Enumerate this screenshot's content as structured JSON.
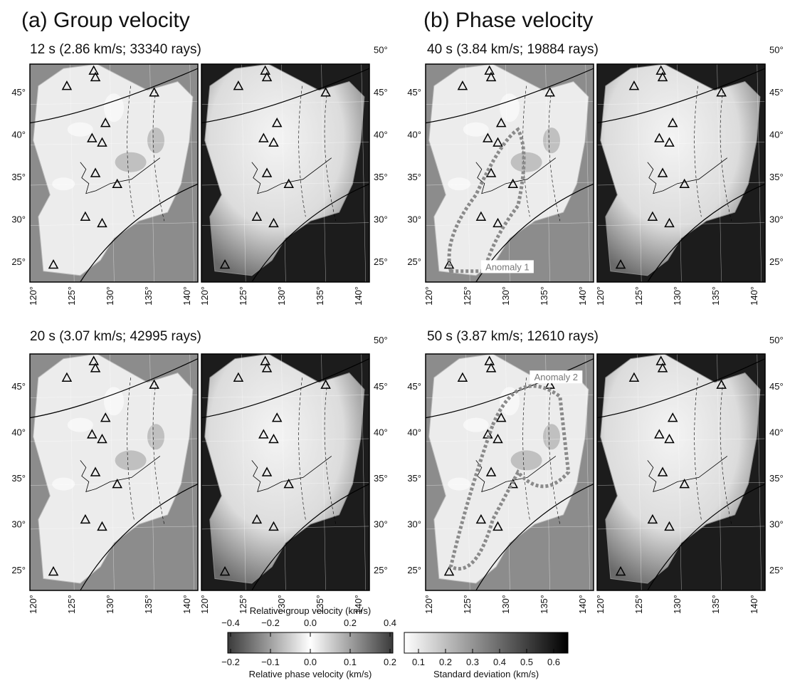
{
  "columns": [
    {
      "title": "(a) Group velocity"
    },
    {
      "title": "(b) Phase velocity"
    }
  ],
  "panels": [
    {
      "label": "12 s (2.86 km/s; 33340 rays)"
    },
    {
      "label": "20 s (3.07 km/s; 42995 rays)"
    },
    {
      "label": "40 s (3.84 km/s; 19884 rays)"
    },
    {
      "label": "50 s (3.87 km/s; 12610 rays)"
    }
  ],
  "map_axes": {
    "lon_ticks": [
      "120°",
      "125°",
      "130°",
      "135°",
      "140°"
    ],
    "lat_ticks": [
      "25°",
      "30°",
      "35°",
      "40°",
      "45°",
      "50°"
    ]
  },
  "annotations": [
    "Anomaly 1",
    "Anomaly 2"
  ],
  "colorbars": {
    "group": {
      "label": "Relative group velocity (km/s)",
      "ticks": [
        "−0.4",
        "−0.2",
        "0.0",
        "0.2",
        "0.4"
      ]
    },
    "phase": {
      "label": "Relative phase velocity (km/s)",
      "ticks": [
        "−0.2",
        "−0.1",
        "0.0",
        "0.1",
        "0.2"
      ]
    },
    "std": {
      "label": "Standard deviation (km/s)",
      "ticks": [
        "0.1",
        "0.2",
        "0.3",
        "0.4",
        "0.5",
        "0.6"
      ]
    }
  }
}
